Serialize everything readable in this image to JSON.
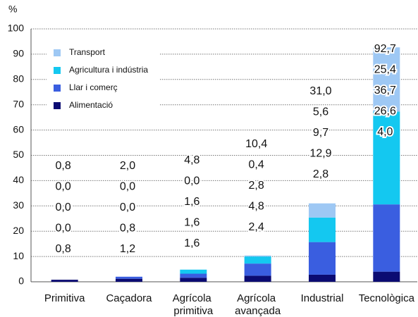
{
  "chart_data": {
    "type": "stacked_bar",
    "y_label": "%",
    "categories": [
      "Primitiva",
      "Caçadora",
      "Agrícola primitiva",
      "Agrícola avançada",
      "Industrial",
      "Tecnològica"
    ],
    "series": [
      {
        "name": "Alimentació",
        "color": "#0b0b72",
        "values": [
          0.8,
          1.2,
          1.6,
          2.4,
          2.8,
          4.0
        ],
        "value_labels": [
          "0,8",
          "1,2",
          "1,6",
          "2,4",
          "2,8",
          "4,0"
        ]
      },
      {
        "name": "Llar i comerç",
        "color": "#3a5ee0",
        "values": [
          0.0,
          0.8,
          1.6,
          4.8,
          12.9,
          26.6
        ],
        "value_labels": [
          "0,0",
          "0,8",
          "1,6",
          "4,8",
          "12,9",
          "26,6"
        ]
      },
      {
        "name": "Agricultura i indústria",
        "color": "#14c8f0",
        "values": [
          0.0,
          0.0,
          1.6,
          2.8,
          9.7,
          36.7
        ],
        "value_labels": [
          "0,0",
          "0,0",
          "1,6",
          "2,8",
          "9,7",
          "36,7"
        ]
      },
      {
        "name": "Transport",
        "color": "#9ec8f4",
        "values": [
          0.0,
          0.0,
          0.0,
          0.4,
          5.6,
          25.4
        ],
        "value_labels": [
          "0,0",
          "0,0",
          "0,0",
          "0,4",
          "5,6",
          "25,4"
        ]
      }
    ],
    "totals": {
      "values": [
        0.8,
        2.0,
        4.8,
        10.4,
        31.0,
        92.7
      ],
      "value_labels": [
        "0,8",
        "2,0",
        "4,8",
        "10,4",
        "31,0",
        "92,7"
      ]
    },
    "ylim": [
      0,
      100
    ],
    "yticks": [
      0,
      10,
      20,
      30,
      40,
      50,
      60,
      70,
      80,
      90,
      100
    ],
    "grid": true
  }
}
